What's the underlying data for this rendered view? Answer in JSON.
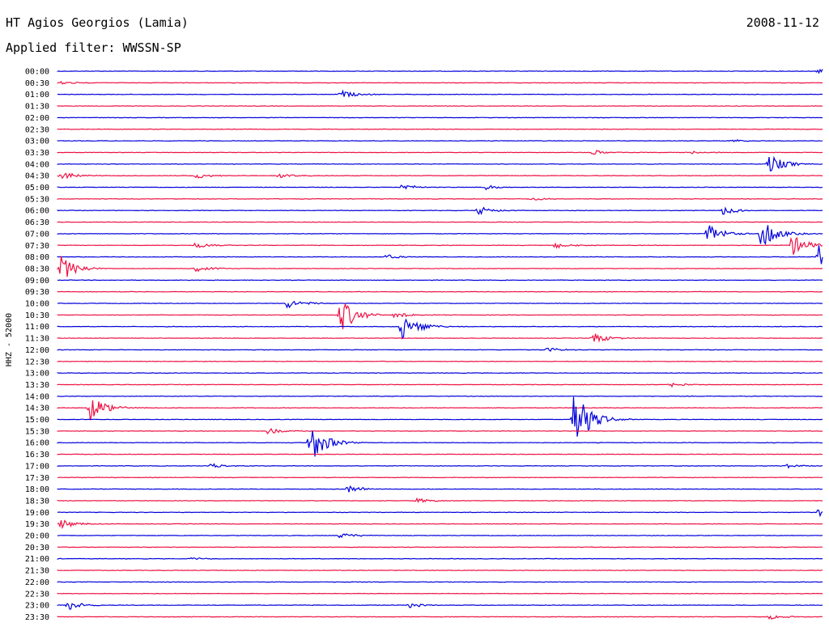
{
  "header": {
    "station": "HT Agios Georgios (Lamia)",
    "date": "2008-11-12",
    "filter": "Applied filter: WWSSN-SP"
  },
  "chart_data": {
    "type": "line",
    "title": "HT Agios Georgios (Lamia)",
    "subtitle": "Applied filter: WWSSN-SP",
    "ylabel": "HHZ - 52000",
    "colors": [
      "#0000dd",
      "#ee1144"
    ],
    "rows": [
      {
        "time": "00:00",
        "events": [
          {
            "t": 0.995,
            "amp": 4
          }
        ]
      },
      {
        "time": "00:30",
        "events": [
          {
            "t": 0.005,
            "amp": 2
          }
        ]
      },
      {
        "time": "01:00",
        "events": [
          {
            "t": 0.37,
            "amp": 5
          }
        ]
      },
      {
        "time": "01:30",
        "events": []
      },
      {
        "time": "02:00",
        "events": []
      },
      {
        "time": "02:30",
        "events": []
      },
      {
        "time": "03:00",
        "events": [
          {
            "t": 0.88,
            "amp": 2
          }
        ]
      },
      {
        "time": "03:30",
        "events": [
          {
            "t": 0.7,
            "amp": 3
          },
          {
            "t": 0.83,
            "amp": 2
          }
        ]
      },
      {
        "time": "04:00",
        "events": [
          {
            "t": 0.93,
            "amp": 12
          }
        ]
      },
      {
        "time": "04:30",
        "events": [
          {
            "t": 0.005,
            "amp": 6
          },
          {
            "t": 0.18,
            "amp": 4
          },
          {
            "t": 0.29,
            "amp": 3
          }
        ]
      },
      {
        "time": "05:00",
        "events": [
          {
            "t": 0.45,
            "amp": 4
          },
          {
            "t": 0.56,
            "amp": 3
          }
        ]
      },
      {
        "time": "05:30",
        "events": [
          {
            "t": 0.62,
            "amp": 2
          }
        ]
      },
      {
        "time": "06:00",
        "events": [
          {
            "t": 0.55,
            "amp": 6
          },
          {
            "t": 0.87,
            "amp": 5
          }
        ]
      },
      {
        "time": "06:30",
        "events": []
      },
      {
        "time": "07:00",
        "events": [
          {
            "t": 0.85,
            "amp": 12
          },
          {
            "t": 0.92,
            "amp": 18
          }
        ]
      },
      {
        "time": "07:30",
        "events": [
          {
            "t": 0.18,
            "amp": 4
          },
          {
            "t": 0.65,
            "amp": 4
          },
          {
            "t": 0.96,
            "amp": 14
          }
        ]
      },
      {
        "time": "08:00",
        "events": [
          {
            "t": 0.43,
            "amp": 3
          },
          {
            "t": 0.995,
            "amp": 18
          }
        ]
      },
      {
        "time": "08:30",
        "events": [
          {
            "t": 0.005,
            "amp": 16
          },
          {
            "t": 0.18,
            "amp": 4
          }
        ]
      },
      {
        "time": "09:00",
        "events": []
      },
      {
        "time": "09:30",
        "events": []
      },
      {
        "time": "10:00",
        "events": [
          {
            "t": 0.3,
            "amp": 6
          }
        ]
      },
      {
        "time": "10:30",
        "events": [
          {
            "t": 0.37,
            "amp": 22
          },
          {
            "t": 0.44,
            "amp": 4
          }
        ]
      },
      {
        "time": "11:00",
        "events": [
          {
            "t": 0.45,
            "amp": 18
          }
        ]
      },
      {
        "time": "11:30",
        "events": [
          {
            "t": 0.7,
            "amp": 7
          }
        ]
      },
      {
        "time": "12:00",
        "events": [
          {
            "t": 0.64,
            "amp": 3
          }
        ]
      },
      {
        "time": "12:30",
        "events": []
      },
      {
        "time": "13:00",
        "events": []
      },
      {
        "time": "13:30",
        "events": [
          {
            "t": 0.8,
            "amp": 3
          }
        ]
      },
      {
        "time": "14:00",
        "events": []
      },
      {
        "time": "14:30",
        "events": [
          {
            "t": 0.043,
            "amp": 16
          }
        ]
      },
      {
        "time": "15:00",
        "events": [
          {
            "t": 0.675,
            "amp": 40
          }
        ]
      },
      {
        "time": "15:30",
        "events": [
          {
            "t": 0.275,
            "amp": 4
          }
        ]
      },
      {
        "time": "16:00",
        "events": [
          {
            "t": 0.33,
            "amp": 26
          }
        ]
      },
      {
        "time": "16:30",
        "events": []
      },
      {
        "time": "17:00",
        "events": [
          {
            "t": 0.2,
            "amp": 3
          },
          {
            "t": 0.95,
            "amp": 3
          }
        ]
      },
      {
        "time": "17:30",
        "events": []
      },
      {
        "time": "18:00",
        "events": [
          {
            "t": 0.38,
            "amp": 5
          }
        ]
      },
      {
        "time": "18:30",
        "events": [
          {
            "t": 0.47,
            "amp": 3
          }
        ]
      },
      {
        "time": "19:00",
        "events": [
          {
            "t": 0.995,
            "amp": 5
          }
        ]
      },
      {
        "time": "19:30",
        "events": [
          {
            "t": 0.005,
            "amp": 6
          }
        ]
      },
      {
        "time": "20:00",
        "events": [
          {
            "t": 0.37,
            "amp": 4
          }
        ]
      },
      {
        "time": "20:30",
        "events": []
      },
      {
        "time": "21:00",
        "events": [
          {
            "t": 0.17,
            "amp": 2
          }
        ]
      },
      {
        "time": "21:30",
        "events": []
      },
      {
        "time": "22:00",
        "events": []
      },
      {
        "time": "22:30",
        "events": []
      },
      {
        "time": "23:00",
        "events": [
          {
            "t": 0.013,
            "amp": 6
          },
          {
            "t": 0.46,
            "amp": 3
          }
        ]
      },
      {
        "time": "23:30",
        "events": [
          {
            "t": 0.93,
            "amp": 3
          }
        ]
      }
    ]
  }
}
